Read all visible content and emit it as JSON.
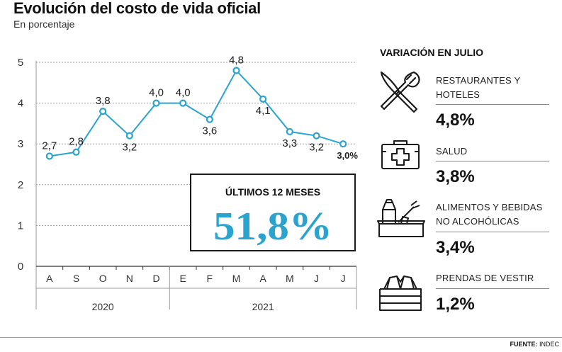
{
  "header": {
    "title": "Evolución del costo de vida oficial",
    "subtitle": "En porcentaje"
  },
  "chart_data": {
    "type": "line",
    "categories": [
      "A",
      "S",
      "O",
      "N",
      "D",
      "E",
      "F",
      "M",
      "A",
      "M",
      "J",
      "J"
    ],
    "values": [
      2.7,
      2.8,
      3.8,
      3.2,
      4.0,
      4.0,
      3.6,
      4.8,
      4.1,
      3.3,
      3.2,
      3.0
    ],
    "value_labels": [
      "2,7",
      "2,8",
      "3,8",
      "3,2",
      "4,0",
      "4,0",
      "3,6",
      "4,8",
      "4,1",
      "3,3",
      "3,2",
      "3,0%"
    ],
    "yticks": [
      "0",
      "1",
      "2",
      "3",
      "4",
      "5"
    ],
    "ylim": [
      0,
      5
    ],
    "year_groups": [
      {
        "label": "2020",
        "span": 5
      },
      {
        "label": "2021",
        "span": 7
      }
    ],
    "line_color": "#2aa3cf",
    "grid": "dotted horizontal",
    "callout": {
      "label": "ÚLTIMOS 12 MESES",
      "value": "51,8%",
      "value_color": "#2aa3cf"
    }
  },
  "sidebar": {
    "heading": "VARIACIÓN EN JULIO",
    "items": [
      {
        "icon": "fork-knife-icon",
        "label_lines": [
          "RESTAURANTES Y",
          "HOTELES"
        ],
        "value": "4,8%"
      },
      {
        "icon": "first-aid-kit-icon",
        "label_lines": [
          "SALUD"
        ],
        "value": "3,8%"
      },
      {
        "icon": "grocery-basket-icon",
        "label_lines": [
          "ALIMENTOS Y BEBIDAS",
          "NO ALCOHÓLICAS"
        ],
        "value": "3,4%"
      },
      {
        "icon": "folded-clothes-icon",
        "label_lines": [
          "PRENDAS DE VESTIR"
        ],
        "value": "1,2%"
      }
    ]
  },
  "footer": {
    "source_label": "FUENTE:",
    "source_value": "INDEC"
  }
}
